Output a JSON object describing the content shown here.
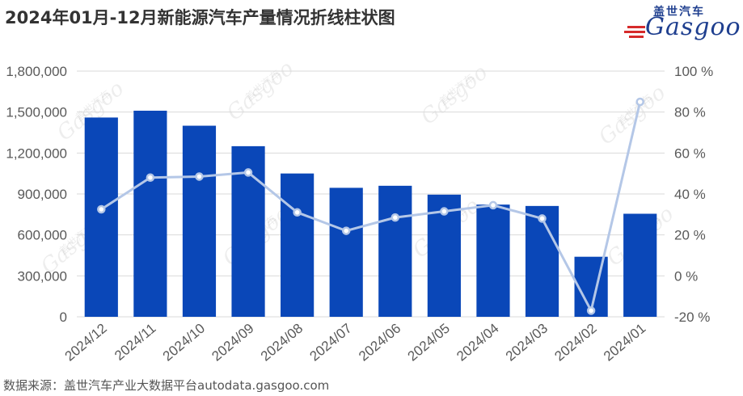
{
  "header": {
    "title": "2024年01月-12月新能源汽车产量情况折线柱状图",
    "logo_cn": "盖世汽车",
    "logo_en": "Gasgoo"
  },
  "footer": {
    "source": "数据来源：盖世汽车产业大数据平台autodata.gasgoo.com"
  },
  "watermark": {
    "text_cn": "盖世汽车",
    "text_en": "Gasgoo"
  },
  "colors": {
    "bar": "#0a47b8",
    "line": "#b4c7e7",
    "marker": "#b4c7e7",
    "grid": "#d9d9d9",
    "text": "#595959",
    "title": "#333333",
    "logo_blue": "#1f3f8f",
    "logo_red": "#d62b2b"
  },
  "chart_data": {
    "type": "bar",
    "categories": [
      "2024/12",
      "2024/11",
      "2024/10",
      "2024/09",
      "2024/08",
      "2024/07",
      "2024/06",
      "2024/05",
      "2024/04",
      "2024/03",
      "2024/02",
      "2024/01"
    ],
    "series": [
      {
        "type": "bar",
        "axis": "left",
        "values": [
          1460000,
          1510000,
          1400000,
          1250000,
          1050000,
          945000,
          960000,
          895000,
          822000,
          812000,
          440000,
          755000
        ]
      },
      {
        "type": "line",
        "axis": "right",
        "values": [
          32.5,
          48,
          48.5,
          50.5,
          31,
          22,
          28.5,
          31.5,
          34.5,
          28,
          -17,
          85
        ]
      }
    ],
    "y_left": {
      "min": 0,
      "max": 1800000,
      "ticks": [
        "0",
        "300,000",
        "600,000",
        "900,000",
        "1,200,000",
        "1,500,000",
        "1,800,000"
      ]
    },
    "y_right": {
      "min": -20,
      "max": 100,
      "ticks": [
        "-20 %",
        "0 %",
        "20 %",
        "40 %",
        "60 %",
        "80 %",
        "100 %"
      ]
    },
    "grid": true,
    "legend": "none"
  }
}
